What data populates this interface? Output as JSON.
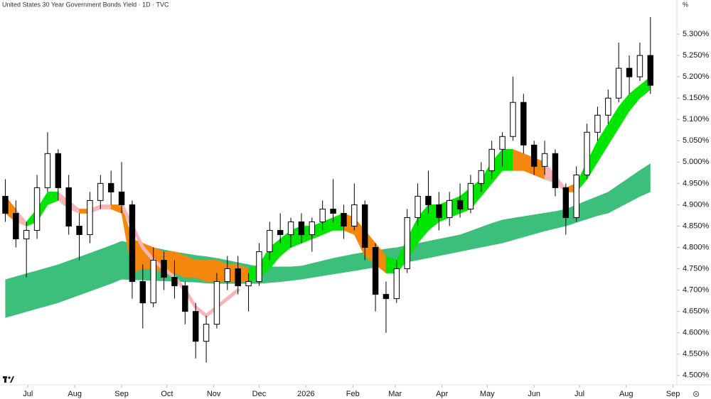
{
  "chart_data": {
    "type": "candlestick",
    "title": "United States 30 Year Government Bonds Yield · 1D · TVC",
    "y_unit": "%",
    "up_color": "#ffffff",
    "down_color": "#000000",
    "open": [
      4.92,
      4.88,
      4.82,
      4.84,
      4.94,
      5.02,
      4.94,
      4.85,
      4.83,
      4.91,
      4.95,
      4.93,
      4.9,
      4.72,
      4.67,
      4.77,
      4.73,
      4.71,
      4.65,
      4.58,
      4.62,
      4.72,
      4.75,
      4.71,
      4.72,
      4.79,
      4.84,
      4.83,
      4.86,
      4.83,
      4.86,
      4.89,
      4.88,
      4.85,
      4.9,
      4.8,
      4.69,
      4.68,
      4.75,
      4.87,
      4.92,
      4.9,
      4.87,
      4.91,
      4.89,
      4.95,
      4.98,
      5.03,
      5.06,
      5.14,
      5.04,
      4.99,
      5.02,
      4.94,
      4.87,
      4.97,
      5.07,
      5.11,
      5.15,
      5.22,
      5.2,
      5.25
    ],
    "high": [
      4.96,
      4.91,
      4.86,
      4.97,
      5.07,
      5.03,
      4.97,
      4.88,
      4.93,
      4.97,
      4.98,
      5.0,
      4.91,
      4.76,
      4.8,
      4.79,
      4.77,
      4.72,
      4.67,
      4.64,
      4.74,
      4.78,
      4.78,
      4.74,
      4.81,
      4.86,
      4.88,
      4.87,
      4.88,
      4.87,
      4.91,
      4.96,
      4.9,
      4.95,
      4.91,
      4.81,
      4.72,
      4.77,
      4.89,
      4.95,
      4.98,
      4.93,
      4.93,
      4.95,
      4.97,
      5.0,
      5.05,
      5.07,
      5.2,
      5.16,
      5.05,
      5.05,
      5.03,
      4.95,
      4.99,
      5.09,
      5.13,
      5.17,
      5.28,
      5.25,
      5.28,
      5.34
    ],
    "low": [
      4.86,
      4.8,
      4.73,
      4.82,
      4.93,
      4.91,
      4.83,
      4.77,
      4.81,
      4.89,
      4.9,
      4.88,
      4.68,
      4.61,
      4.66,
      4.7,
      4.68,
      4.62,
      4.54,
      4.53,
      4.61,
      4.7,
      4.69,
      4.65,
      4.71,
      4.77,
      4.81,
      4.8,
      4.81,
      4.79,
      4.84,
      4.86,
      4.82,
      4.84,
      4.77,
      4.65,
      4.6,
      4.67,
      4.74,
      4.85,
      4.88,
      4.84,
      4.85,
      4.87,
      4.88,
      4.93,
      4.96,
      4.99,
      5.05,
      5.02,
      4.97,
      4.97,
      4.92,
      4.83,
      4.86,
      4.96,
      5.05,
      5.09,
      5.14,
      5.16,
      5.19,
      5.16
    ],
    "close": [
      4.88,
      4.82,
      4.84,
      4.94,
      5.02,
      4.94,
      4.85,
      4.83,
      4.91,
      4.95,
      4.93,
      4.9,
      4.72,
      4.67,
      4.77,
      4.73,
      4.71,
      4.65,
      4.58,
      4.62,
      4.72,
      4.75,
      4.71,
      4.72,
      4.79,
      4.84,
      4.83,
      4.86,
      4.83,
      4.86,
      4.89,
      4.88,
      4.85,
      4.9,
      4.8,
      4.69,
      4.68,
      4.75,
      4.87,
      4.92,
      4.9,
      4.87,
      4.91,
      4.89,
      4.95,
      4.98,
      5.03,
      5.06,
      5.14,
      5.04,
      4.99,
      5.02,
      4.94,
      4.87,
      4.97,
      5.07,
      5.11,
      5.15,
      5.22,
      5.2,
      5.25,
      5.18
    ],
    "ribbons": [
      {
        "color": "#3cbf7a",
        "upper": [
          4.725,
          4.732,
          4.739,
          4.746,
          4.753,
          4.76,
          4.769,
          4.778,
          4.787,
          4.796,
          4.805,
          4.815,
          4.81,
          4.805,
          4.8,
          4.795,
          4.79,
          4.786,
          4.782,
          4.779,
          4.775,
          4.77,
          4.765,
          4.76,
          4.755,
          4.755,
          4.755,
          4.755,
          4.757,
          4.763,
          4.769,
          4.775,
          4.78,
          4.785,
          4.789,
          4.793,
          4.797,
          4.8,
          4.805,
          4.81,
          4.815,
          4.82,
          4.825,
          4.83,
          4.839,
          4.848,
          4.857,
          4.865,
          4.869,
          4.873,
          4.877,
          4.881,
          4.885,
          4.89,
          4.9,
          4.91,
          4.92,
          4.93,
          4.947,
          4.964,
          4.981,
          4.997
        ],
        "lower": [
          4.635,
          4.642,
          4.649,
          4.656,
          4.663,
          4.67,
          4.679,
          4.688,
          4.697,
          4.706,
          4.715,
          4.725,
          4.724,
          4.723,
          4.722,
          4.721,
          4.72,
          4.719,
          4.718,
          4.716,
          4.715,
          4.715,
          4.715,
          4.715,
          4.715,
          4.717,
          4.719,
          4.722,
          4.725,
          4.729,
          4.733,
          4.737,
          4.741,
          4.745,
          4.749,
          4.753,
          4.757,
          4.76,
          4.765,
          4.77,
          4.775,
          4.78,
          4.785,
          4.79,
          4.795,
          4.8,
          4.805,
          4.81,
          4.817,
          4.824,
          4.831,
          4.838,
          4.844,
          4.85,
          4.858,
          4.866,
          4.874,
          4.88,
          4.893,
          4.906,
          4.919,
          4.93
        ]
      },
      {
        "upper": [
          4.92,
          4.89,
          4.86,
          4.89,
          4.93,
          4.93,
          4.91,
          4.89,
          4.89,
          4.9,
          4.9,
          4.9,
          4.82,
          4.81,
          4.8,
          4.79,
          4.79,
          4.78,
          4.77,
          4.77,
          4.77,
          4.76,
          4.76,
          4.75,
          4.76,
          4.8,
          4.82,
          4.84,
          4.85,
          4.85,
          4.86,
          4.87,
          4.88,
          4.87,
          4.84,
          4.81,
          4.78,
          4.77,
          4.82,
          4.87,
          4.9,
          4.9,
          4.91,
          4.92,
          4.94,
          4.96,
          5.0,
          5.03,
          5.03,
          5.02,
          5.01,
          5.0,
          4.97,
          4.94,
          4.95,
          5.0,
          5.05,
          5.09,
          5.13,
          5.16,
          5.18,
          5.2
        ],
        "lower": [
          4.88,
          4.86,
          4.85,
          4.86,
          4.9,
          4.91,
          4.89,
          4.88,
          4.88,
          4.89,
          4.89,
          4.88,
          4.74,
          4.75,
          4.75,
          4.74,
          4.74,
          4.73,
          4.73,
          4.72,
          4.72,
          4.72,
          4.72,
          4.72,
          4.73,
          4.75,
          4.78,
          4.8,
          4.81,
          4.82,
          4.83,
          4.84,
          4.84,
          4.83,
          4.78,
          4.76,
          4.74,
          4.74,
          4.77,
          4.81,
          4.84,
          4.86,
          4.87,
          4.88,
          4.89,
          4.92,
          4.95,
          4.98,
          4.98,
          4.98,
          4.97,
          4.96,
          4.95,
          4.93,
          4.93,
          4.96,
          5.0,
          5.04,
          5.08,
          5.12,
          5.15,
          5.17
        ],
        "colors": [
          "#f5870f",
          "#f5870f",
          "#f4b6b8",
          "#00e600",
          "#00e600",
          "#00e600",
          "#f4b6b8",
          "#f4b6b8",
          "#f5870f",
          "#f4b6b8",
          "#f4b6b8",
          "#f5870f",
          "#f5870f",
          "#f5870f",
          "#f5870f",
          "#f5870f",
          "#f5870f",
          "#f5870f",
          "#f5870f",
          "#f5870f",
          "#f5870f",
          "#f5870f",
          "#f5870f",
          "#f5870f",
          "#00e600",
          "#00e600",
          "#00e600",
          "#00e600",
          "#00e600",
          "#00e600",
          "#00e600",
          "#00e600",
          "#00e600",
          "#f5870f",
          "#f5870f",
          "#f5870f",
          "#f5870f",
          "#00e600",
          "#00e600",
          "#00e600",
          "#00e600",
          "#00e600",
          "#00e600",
          "#00e600",
          "#00e600",
          "#00e600",
          "#00e600",
          "#00e600",
          "#00e600",
          "#f5870f",
          "#f5870f",
          "#f5870f",
          "#f4b6b8",
          "#f4b6b8",
          "#f5870f",
          "#00e600",
          "#00e600",
          "#00e600",
          "#00e600",
          "#00e600",
          "#00e600",
          "#00e600"
        ]
      }
    ],
    "lines": [
      {
        "color": "#f4b6b8",
        "values": [
          null,
          null,
          null,
          null,
          null,
          null,
          null,
          null,
          null,
          null,
          null,
          4.9,
          4.85,
          4.8,
          4.77,
          4.75,
          4.73,
          4.7,
          4.66,
          4.64,
          4.66,
          4.68,
          4.7,
          null,
          null,
          null,
          null,
          null,
          null,
          null,
          null,
          null,
          null,
          null,
          null,
          null,
          null,
          null,
          null,
          null,
          null,
          null,
          null,
          null,
          null,
          null,
          null,
          null,
          null,
          null,
          null,
          null,
          null,
          null,
          null,
          null,
          null,
          null,
          null,
          null,
          null,
          null
        ]
      }
    ],
    "xlim": [
      -0.5,
      63.5
    ],
    "xticks": [
      {
        "value": 2.14,
        "label": "Jul"
      },
      {
        "value": 6.57,
        "label": "Aug"
      },
      {
        "value": 11,
        "label": "Sep"
      },
      {
        "value": 15.29,
        "label": "Oct"
      },
      {
        "value": 19.71,
        "label": "Nov"
      },
      {
        "value": 24,
        "label": "Dec"
      },
      {
        "value": 28.43,
        "label": "2026"
      },
      {
        "value": 32.86,
        "label": "Feb"
      },
      {
        "value": 36.86,
        "label": "Mar"
      },
      {
        "value": 41.29,
        "label": "Apr"
      },
      {
        "value": 45.57,
        "label": "May"
      },
      {
        "value": 50,
        "label": "Jun"
      },
      {
        "value": 54.29,
        "label": "Jul"
      },
      {
        "value": 58.71,
        "label": "Aug"
      },
      {
        "value": 63.14,
        "label": "Sep"
      }
    ],
    "ylim": [
      4.478,
      5.38
    ],
    "yticks": [
      {
        "value": 4.5,
        "label": "4.500%"
      },
      {
        "value": 4.55,
        "label": "4.550%"
      },
      {
        "value": 4.6,
        "label": "4.600%"
      },
      {
        "value": 4.65,
        "label": "4.650%"
      },
      {
        "value": 4.7,
        "label": "4.700%"
      },
      {
        "value": 4.75,
        "label": "4.750%"
      },
      {
        "value": 4.8,
        "label": "4.800%"
      },
      {
        "value": 4.85,
        "label": "4.850%"
      },
      {
        "value": 4.9,
        "label": "4.900%"
      },
      {
        "value": 4.95,
        "label": "4.950%"
      },
      {
        "value": 5.0,
        "label": "5.000%"
      },
      {
        "value": 5.05,
        "label": "5.050%"
      },
      {
        "value": 5.1,
        "label": "5.100%"
      },
      {
        "value": 5.15,
        "label": "5.150%"
      },
      {
        "value": 5.2,
        "label": "5.200%"
      },
      {
        "value": 5.25,
        "label": "5.250%"
      },
      {
        "value": 5.3,
        "label": "5.300%"
      }
    ],
    "grid": false
  }
}
